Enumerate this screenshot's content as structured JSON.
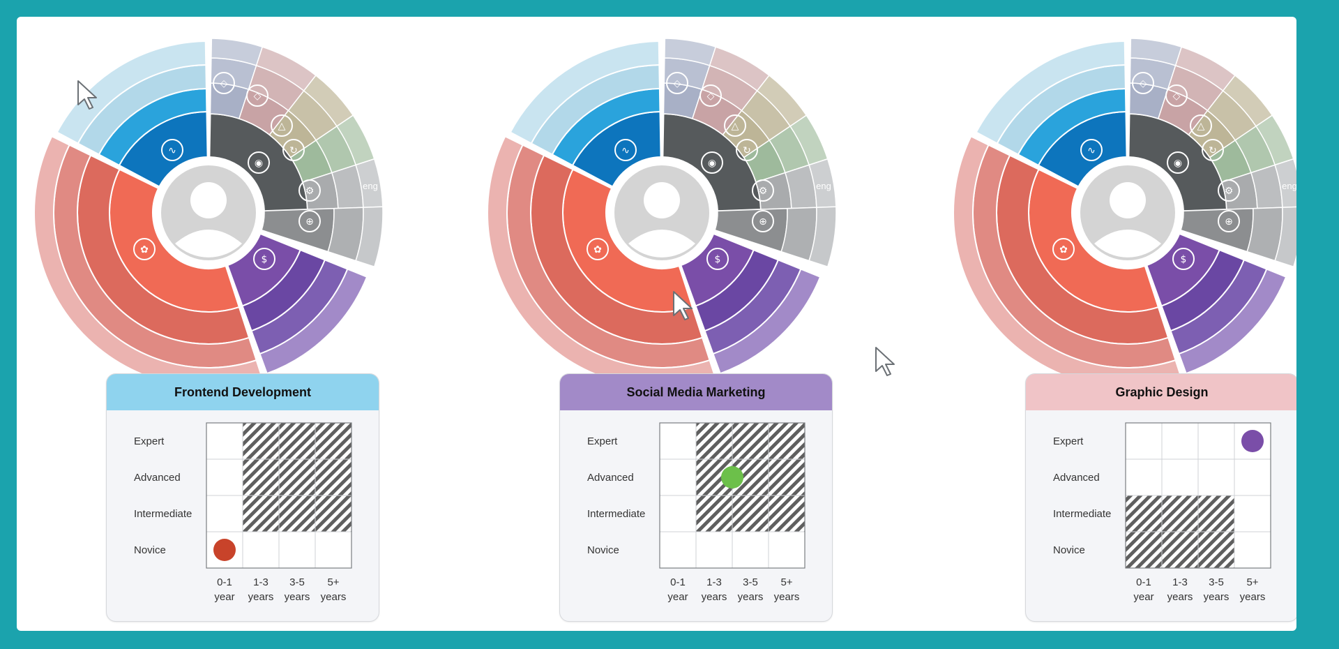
{
  "colors": {
    "border": "#1ba3ad",
    "blue_header": "#8fd3ee",
    "purple_header": "#a28ac8",
    "pink_header": "#f0c4c7",
    "dot_red": "#c8432a",
    "dot_green": "#6cc04a",
    "dot_purple": "#7a4ea8"
  },
  "wheel_icons": [
    "user-avatar",
    "code-icon",
    "design-icon",
    "marketing-icon",
    "engineering-icons"
  ],
  "wheel_label": "eng",
  "panels": [
    {
      "title": "Frontend Development",
      "header_color": "#8fd3ee",
      "levels": [
        "Expert",
        "Advanced",
        "Intermediate",
        "Novice"
      ],
      "experience": [
        [
          "0-1",
          "year"
        ],
        [
          "1-3",
          "years"
        ],
        [
          "3-5",
          "years"
        ],
        [
          "5+",
          "years"
        ]
      ],
      "hatched_cells": [
        [
          0,
          1
        ],
        [
          0,
          2
        ],
        [
          0,
          3
        ],
        [
          1,
          1
        ],
        [
          1,
          2
        ],
        [
          1,
          3
        ],
        [
          2,
          1
        ],
        [
          2,
          2
        ],
        [
          2,
          3
        ]
      ],
      "marker": {
        "level": "Novice",
        "experience": "0-1",
        "color": "#c8432a"
      }
    },
    {
      "title": "Social Media Marketing",
      "header_color": "#a28ac8",
      "levels": [
        "Expert",
        "Advanced",
        "Intermediate",
        "Novice"
      ],
      "experience": [
        [
          "0-1",
          "year"
        ],
        [
          "1-3",
          "years"
        ],
        [
          "3-5",
          "years"
        ],
        [
          "5+",
          "years"
        ]
      ],
      "hatched_cells": [
        [
          0,
          1
        ],
        [
          0,
          2
        ],
        [
          0,
          3
        ],
        [
          1,
          1
        ],
        [
          1,
          2
        ],
        [
          1,
          3
        ],
        [
          2,
          1
        ],
        [
          2,
          2
        ],
        [
          2,
          3
        ]
      ],
      "marker": {
        "level": "Advanced",
        "experience": "1-3 / 3-5",
        "color": "#6cc04a"
      }
    },
    {
      "title": "Graphic Design",
      "header_color": "#f0c4c7",
      "levels": [
        "Expert",
        "Advanced",
        "Intermediate",
        "Novice"
      ],
      "experience": [
        [
          "0-1",
          "year"
        ],
        [
          "1-3",
          "years"
        ],
        [
          "3-5",
          "years"
        ],
        [
          "5+",
          "years"
        ]
      ],
      "hatched_cells": [
        [
          2,
          0
        ],
        [
          2,
          1
        ],
        [
          2,
          2
        ],
        [
          3,
          0
        ],
        [
          3,
          1
        ],
        [
          3,
          2
        ]
      ],
      "marker": {
        "level": "Expert",
        "experience": "5+",
        "color": "#7a4ea8"
      }
    }
  ]
}
